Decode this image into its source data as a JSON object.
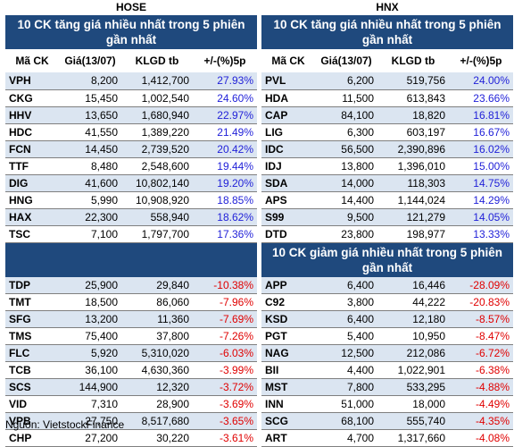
{
  "hose": {
    "title": "HOSE",
    "gainers_title": "10 CK tăng giá nhiều nhất trong 5 phiên gần nhất",
    "headers": [
      "Mã CK",
      "Giá(13/07)",
      "KLGD tb",
      "+/-(%)5p"
    ],
    "gainers": [
      [
        "VPH",
        "8,200",
        "1,412,700",
        "27.93%"
      ],
      [
        "CKG",
        "15,450",
        "1,002,540",
        "24.60%"
      ],
      [
        "HHV",
        "13,650",
        "1,680,940",
        "22.97%"
      ],
      [
        "HDC",
        "41,550",
        "1,389,220",
        "21.49%"
      ],
      [
        "FCN",
        "14,450",
        "2,739,520",
        "20.42%"
      ],
      [
        "TTF",
        "8,480",
        "2,548,600",
        "19.44%"
      ],
      [
        "DIG",
        "41,600",
        "10,802,140",
        "19.20%"
      ],
      [
        "HNG",
        "5,990",
        "10,908,920",
        "18.85%"
      ],
      [
        "HAX",
        "22,300",
        "558,940",
        "18.62%"
      ],
      [
        "TSC",
        "7,100",
        "1,797,700",
        "17.36%"
      ]
    ],
    "losers": [
      [
        "TDP",
        "25,900",
        "29,840",
        "-10.38%"
      ],
      [
        "TMT",
        "18,500",
        "86,060",
        "-7.96%"
      ],
      [
        "SFG",
        "13,200",
        "11,360",
        "-7.69%"
      ],
      [
        "TMS",
        "75,400",
        "37,800",
        "-7.26%"
      ],
      [
        "FLC",
        "5,920",
        "5,310,020",
        "-6.03%"
      ],
      [
        "TCB",
        "36,100",
        "4,630,360",
        "-3.99%"
      ],
      [
        "SCS",
        "144,900",
        "12,320",
        "-3.72%"
      ],
      [
        "VID",
        "7,310",
        "28,900",
        "-3.69%"
      ],
      [
        "VPB",
        "27,750",
        "8,517,680",
        "-3.65%"
      ],
      [
        "CHP",
        "27,200",
        "30,220",
        "-3.61%"
      ]
    ]
  },
  "hnx": {
    "title": "HNX",
    "gainers_title": "10 CK tăng giá nhiều nhất trong 5 phiên gần nhất",
    "losers_title": "10 CK giảm giá nhiều nhất trong 5 phiên gần nhất",
    "headers": [
      "Mã CK",
      "Giá(13/07)",
      "KLGD tb",
      "+/-(%)5p"
    ],
    "gainers": [
      [
        "PVL",
        "6,200",
        "519,756",
        "24.00%"
      ],
      [
        "HDA",
        "11,500",
        "613,843",
        "23.66%"
      ],
      [
        "CAP",
        "84,100",
        "18,820",
        "16.81%"
      ],
      [
        "LIG",
        "6,300",
        "603,197",
        "16.67%"
      ],
      [
        "IDC",
        "56,500",
        "2,390,896",
        "16.02%"
      ],
      [
        "IDJ",
        "13,800",
        "1,396,010",
        "15.00%"
      ],
      [
        "SDA",
        "14,000",
        "118,303",
        "14.75%"
      ],
      [
        "APS",
        "14,400",
        "1,144,024",
        "14.29%"
      ],
      [
        "S99",
        "9,500",
        "121,279",
        "14.05%"
      ],
      [
        "DTD",
        "23,800",
        "198,977",
        "13.33%"
      ]
    ],
    "losers": [
      [
        "APP",
        "6,400",
        "16,446",
        "-28.09%"
      ],
      [
        "C92",
        "3,800",
        "44,222",
        "-20.83%"
      ],
      [
        "KSD",
        "6,400",
        "12,180",
        "-8.57%"
      ],
      [
        "PGT",
        "5,400",
        "10,950",
        "-8.47%"
      ],
      [
        "NAG",
        "12,500",
        "212,086",
        "-6.72%"
      ],
      [
        "BII",
        "4,400",
        "1,022,901",
        "-6.38%"
      ],
      [
        "MST",
        "7,800",
        "533,295",
        "-4.88%"
      ],
      [
        "INN",
        "51,000",
        "18,000",
        "-4.49%"
      ],
      [
        "SCG",
        "68,100",
        "555,740",
        "-4.35%"
      ],
      [
        "ART",
        "4,700",
        "1,317,660",
        "-4.08%"
      ]
    ]
  },
  "source": "Nguồn: VietstockFinance",
  "colors": {
    "banner": "#1f497d",
    "row_alt": "#dbe5f1",
    "positive": "#1f1fd8",
    "negative": "#e00000"
  }
}
